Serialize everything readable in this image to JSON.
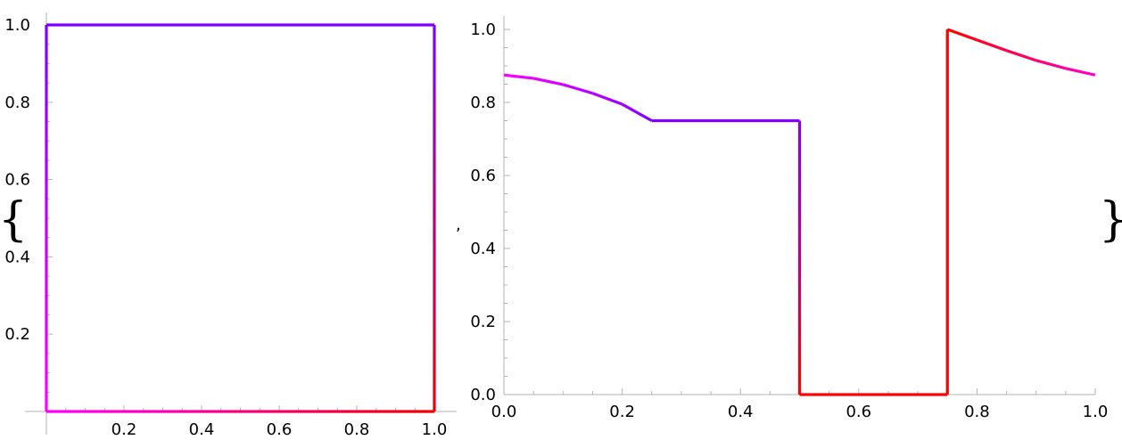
{
  "expression": {
    "open_brace": "{",
    "separator": ",",
    "close_brace": "}"
  },
  "chart_data": [
    {
      "type": "line",
      "title": "",
      "xlabel": "",
      "ylabel": "",
      "xlim": [
        0,
        1
      ],
      "ylim": [
        0,
        1
      ],
      "x_ticks": [
        0.2,
        0.4,
        0.6,
        0.8,
        1.0
      ],
      "y_ticks": [
        0.2,
        0.4,
        0.6,
        0.8,
        1.0
      ],
      "x_tick_labels": [
        "0.2",
        "0.4",
        "0.6",
        "0.8",
        "1.0"
      ],
      "y_tick_labels": [
        "0.2",
        "0.4",
        "0.6",
        "0.8",
        "1.0"
      ],
      "grid": false,
      "color_gradient": [
        "#ff00ff",
        "#8000ff",
        "#ff0000"
      ],
      "series": [
        {
          "points": [
            [
              0,
              0
            ],
            [
              0,
              1
            ],
            [
              1,
              1
            ],
            [
              1,
              0
            ],
            [
              0,
              0
            ]
          ],
          "colors": [
            "#ff00ff",
            "#7f00ff",
            "#8000ff",
            "#ee0000",
            "#ff00ff"
          ]
        }
      ]
    },
    {
      "type": "line",
      "title": "",
      "xlabel": "",
      "ylabel": "",
      "xlim": [
        0,
        1
      ],
      "ylim": [
        0,
        1
      ],
      "x_ticks": [
        0.0,
        0.2,
        0.4,
        0.6,
        0.8,
        1.0
      ],
      "y_ticks": [
        0.0,
        0.2,
        0.4,
        0.6,
        0.8,
        1.0
      ],
      "x_tick_labels": [
        "0.0",
        "0.2",
        "0.4",
        "0.6",
        "0.8",
        "1.0"
      ],
      "y_tick_labels": [
        "0.0",
        "0.2",
        "0.4",
        "0.6",
        "0.8",
        "1.0"
      ],
      "grid": false,
      "color_gradient": [
        "#ff00ff",
        "#8000ff",
        "#ff0000"
      ],
      "series": [
        {
          "points": [
            [
              0,
              0.875
            ],
            [
              0.05,
              0.866
            ],
            [
              0.1,
              0.849
            ],
            [
              0.15,
              0.825
            ],
            [
              0.2,
              0.795
            ],
            [
              0.25,
              0.75
            ],
            [
              0.5,
              0.75
            ],
            [
              0.5,
              0
            ],
            [
              0.75,
              0
            ],
            [
              0.75,
              1.0
            ],
            [
              0.8,
              0.971
            ],
            [
              0.85,
              0.942
            ],
            [
              0.9,
              0.915
            ],
            [
              0.95,
              0.893
            ],
            [
              1.0,
              0.875
            ]
          ],
          "colors": [
            "#ff00ff",
            "#e800ff",
            "#d000ff",
            "#b800ff",
            "#a000ff",
            "#8000ff",
            "#8000ff",
            "#ff0000",
            "#ff0000",
            "#ff0000",
            "#ff0020",
            "#ff0048",
            "#ff0070",
            "#ff00a0",
            "#ff00c8"
          ]
        }
      ]
    }
  ]
}
